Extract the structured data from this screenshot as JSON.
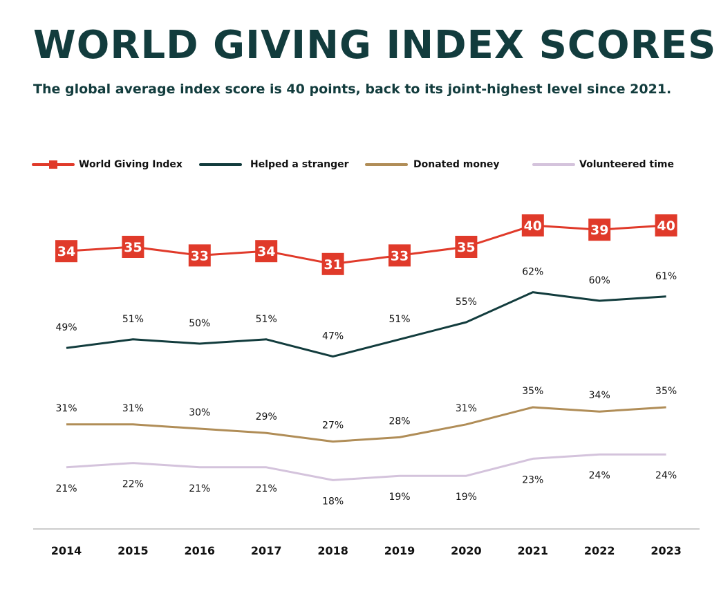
{
  "title": "WORLD GIVING INDEX SCORES",
  "subtitle": "The global average index score is 40 points, back to its joint-highest level since 2021.",
  "chart_data": {
    "type": "line",
    "title": "WORLD GIVING INDEX SCORES",
    "subtitle": "The global average index score is 40 points, back to its joint-highest level since 2021.",
    "x": [
      "2014",
      "2015",
      "2016",
      "2017",
      "2018",
      "2019",
      "2020",
      "2021",
      "2022",
      "2023"
    ],
    "legend_position": "top",
    "grid": false,
    "series": [
      {
        "name": "World Giving Index",
        "color": "#e03a2a",
        "marker": "square",
        "values": [
          34,
          35,
          33,
          34,
          31,
          33,
          35,
          40,
          39,
          40
        ],
        "labels": [
          "34",
          "35",
          "33",
          "34",
          "31",
          "33",
          "35",
          "40",
          "39",
          "40"
        ]
      },
      {
        "name": "Helped a stranger",
        "color": "#123c3d",
        "values": [
          49,
          51,
          50,
          51,
          47,
          51,
          55,
          62,
          60,
          61
        ],
        "labels": [
          "49%",
          "51%",
          "50%",
          "51%",
          "47%",
          "51%",
          "55%",
          "62%",
          "60%",
          "61%"
        ]
      },
      {
        "name": "Donated money",
        "color": "#b08d57",
        "values": [
          31,
          31,
          30,
          29,
          27,
          28,
          31,
          35,
          34,
          35
        ],
        "labels": [
          "31%",
          "31%",
          "30%",
          "29%",
          "27%",
          "28%",
          "31%",
          "35%",
          "34%",
          "35%"
        ]
      },
      {
        "name": "Volunteered time",
        "color": "#d4c3dc",
        "values": [
          21,
          22,
          21,
          21,
          18,
          19,
          19,
          23,
          24,
          24
        ],
        "labels": [
          "21%",
          "22%",
          "21%",
          "21%",
          "18%",
          "19%",
          "19%",
          "23%",
          "24%",
          "24%"
        ]
      }
    ]
  }
}
